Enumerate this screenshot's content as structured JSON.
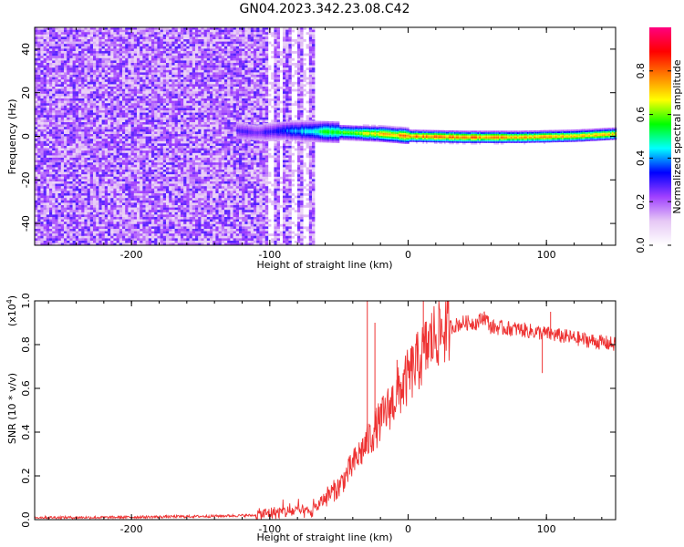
{
  "title": "GN04.2023.342.23.08.C42",
  "chart_data": [
    {
      "type": "heatmap",
      "xlabel": "Height of straight line (km)",
      "ylabel": "Frequency (Hz)",
      "xlim": [
        -270,
        150
      ],
      "ylim": [
        -50,
        50
      ],
      "xticks": [
        -200,
        -100,
        0,
        100
      ],
      "yticks": [
        -40,
        -20,
        0,
        20,
        40
      ],
      "colorbar": {
        "label": "Normalized spectral amplitude",
        "range": [
          0,
          1
        ],
        "ticks": [
          0.0,
          0.2,
          0.4,
          0.6,
          0.8
        ],
        "colors": [
          "#ffffff",
          "#e6c8f5",
          "#a040ff",
          "#0000ff",
          "#00ffff",
          "#00ff00",
          "#ffff00",
          "#ff8000",
          "#ff0000",
          "#ff0080"
        ]
      },
      "noise_region_x": [
        -270,
        -68
      ],
      "noise_gaps_x": [
        [
          -103,
          -98
        ],
        [
          -93,
          -91
        ],
        [
          -85,
          -81
        ],
        [
          -76,
          -72
        ]
      ],
      "signal_band": [
        {
          "x": -125,
          "y": 3,
          "amp": 0.35
        },
        {
          "x": -110,
          "y": 2,
          "amp": 0.3
        },
        {
          "x": -90,
          "y": 3,
          "amp": 0.4
        },
        {
          "x": -60,
          "y": 2.5,
          "amp": 0.6
        },
        {
          "x": -40,
          "y": 2,
          "amp": 0.7
        },
        {
          "x": -20,
          "y": 1.5,
          "amp": 0.8
        },
        {
          "x": 0,
          "y": 0.5,
          "amp": 0.9
        },
        {
          "x": 40,
          "y": 0,
          "amp": 0.9
        },
        {
          "x": 80,
          "y": 0,
          "amp": 0.85
        },
        {
          "x": 120,
          "y": 0.5,
          "amp": 0.85
        },
        {
          "x": 150,
          "y": 1.5,
          "amp": 0.8
        }
      ]
    },
    {
      "type": "line",
      "xlabel": "Height of straight line (km)",
      "ylabel": "SNR (10 * v/v)",
      "yscale_note": "(x10",
      "yscale_exp": "4",
      "yscale_close": ")",
      "xlim": [
        -270,
        150
      ],
      "ylim": [
        0,
        1.0
      ],
      "xticks": [
        -200,
        -100,
        0,
        100
      ],
      "yticks": [
        0.0,
        0.2,
        0.4,
        0.6,
        0.8,
        1.0
      ],
      "color": "#ee3333",
      "series": [
        {
          "x": [
            -270,
            -220,
            -150,
            -110,
            -100,
            -80,
            -70,
            -60,
            -50,
            -40,
            -30,
            -20,
            -10,
            0,
            10,
            20,
            30,
            40,
            50,
            55,
            60,
            80,
            100,
            120,
            140,
            150
          ],
          "y": [
            0.01,
            0.01,
            0.015,
            0.02,
            0.03,
            0.04,
            0.03,
            0.1,
            0.15,
            0.25,
            0.35,
            0.45,
            0.55,
            0.65,
            0.75,
            0.85,
            0.88,
            0.9,
            0.9,
            0.93,
            0.88,
            0.87,
            0.85,
            0.83,
            0.81,
            0.8
          ]
        }
      ],
      "spikes": [
        {
          "x": -29.5,
          "y": 1.0
        },
        {
          "x": -24,
          "y": 0.9
        },
        {
          "x": -8,
          "y": 0.73
        },
        {
          "x": 11,
          "y": 1.0
        },
        {
          "x": 55,
          "y": 0.95
        },
        {
          "x": 97,
          "y": 0.67
        },
        {
          "x": 103,
          "y": 0.95
        }
      ]
    }
  ]
}
